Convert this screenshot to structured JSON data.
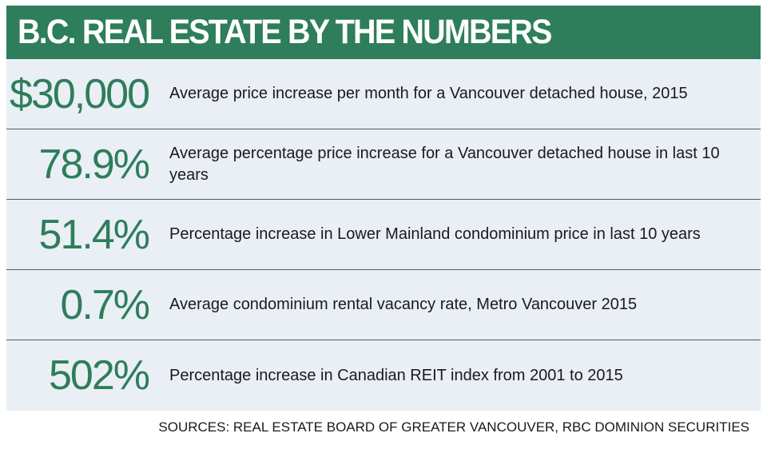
{
  "header": {
    "title": "B.C. REAL ESTATE BY THE NUMBERS"
  },
  "rows": [
    {
      "stat": "$30,000",
      "description": "Average price increase per month for a Vancouver detached house, 2015"
    },
    {
      "stat": "78.9%",
      "description": "Average percentage price increase for a Vancouver detached house in last 10 years"
    },
    {
      "stat": "51.4%",
      "description": "Percentage increase in Lower Mainland condominium price in last 10 years"
    },
    {
      "stat": "0.7%",
      "description": "Average condominium rental vacancy rate, Metro Vancouver 2015"
    },
    {
      "stat": "502%",
      "description": "Percentage increase in Canadian REIT index from 2001 to 2015"
    }
  ],
  "footer": {
    "sources": "SOURCES: REAL ESTATE BOARD OF GREATER VANCOUVER, RBC DOMINION SECURITIES"
  },
  "colors": {
    "accent_green": "#2e7d5b",
    "panel_background": "#e9eff5",
    "divider": "#5a5a5a"
  }
}
